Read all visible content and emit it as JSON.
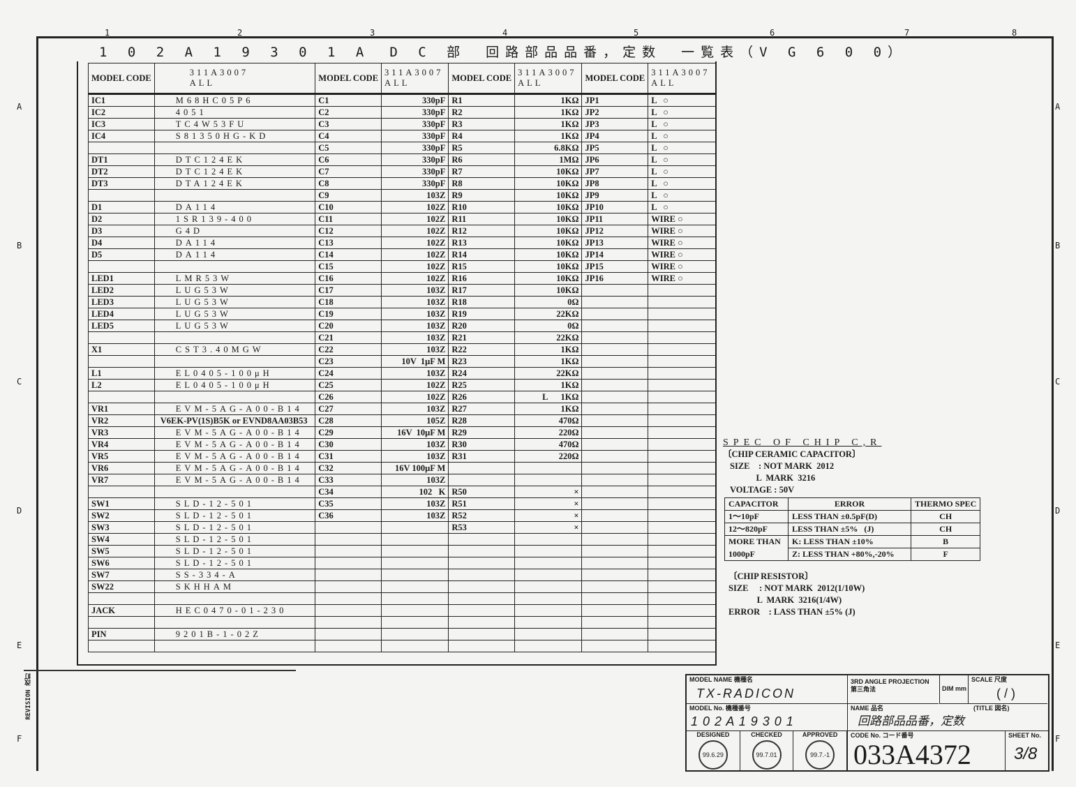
{
  "title": "1 0 2 A 1 9 3 0 1 A　D C 部　回路部品品番，定数　一覧表（V G 6 0 0）",
  "grid_cols": [
    "1",
    "2",
    "3",
    "4",
    "5",
    "6",
    "7",
    "8"
  ],
  "grid_rows": [
    "A",
    "B",
    "C",
    "D",
    "E",
    "F"
  ],
  "header": {
    "model_code": "MODEL CODE",
    "model": "311A3007",
    "all": "ALL"
  },
  "col1": [
    [
      "IC1",
      "M68HC05P6"
    ],
    [
      "IC2",
      "4051"
    ],
    [
      "IC3",
      "TC4W53FU"
    ],
    [
      "IC4",
      "S81350HG-KD"
    ],
    [
      "",
      ""
    ],
    [
      "DT1",
      "DTC124EK"
    ],
    [
      "DT2",
      "DTC124EK"
    ],
    [
      "DT3",
      "DTA124EK"
    ],
    [
      "",
      ""
    ],
    [
      "D1",
      "DA114"
    ],
    [
      "D2",
      "1SR139-400"
    ],
    [
      "D3",
      "G4D"
    ],
    [
      "D4",
      "DA114"
    ],
    [
      "D5",
      "DA114"
    ],
    [
      "",
      ""
    ],
    [
      "LED1",
      "LMR53W"
    ],
    [
      "LED2",
      "LUG53W"
    ],
    [
      "LED3",
      "LUG53W"
    ],
    [
      "LED4",
      "LUG53W"
    ],
    [
      "LED5",
      "LUG53W"
    ],
    [
      "",
      ""
    ],
    [
      "X1",
      "CST3.40MGW"
    ],
    [
      "",
      ""
    ],
    [
      "L1",
      "EL0405-100μH"
    ],
    [
      "L2",
      "EL0405-100μH"
    ],
    [
      "",
      ""
    ],
    [
      "VR1",
      "EVM-5AG-A00-B14"
    ],
    [
      "VR2",
      "V6EK-PV(1S)B5K or EVND8AA03B53"
    ],
    [
      "VR3",
      "EVM-5AG-A00-B14"
    ],
    [
      "VR4",
      "EVM-5AG-A00-B14"
    ],
    [
      "VR5",
      "EVM-5AG-A00-B14"
    ],
    [
      "VR6",
      "EVM-5AG-A00-B14"
    ],
    [
      "VR7",
      "EVM-5AG-A00-B14"
    ],
    [
      "",
      ""
    ],
    [
      "SW1",
      "SLD-12-501"
    ],
    [
      "SW2",
      "SLD-12-501"
    ],
    [
      "SW3",
      "SLD-12-501"
    ],
    [
      "SW4",
      "SLD-12-501"
    ],
    [
      "SW5",
      "SLD-12-501"
    ],
    [
      "SW6",
      "SLD-12-501"
    ],
    [
      "SW7",
      "SS-334-A"
    ],
    [
      "SW22",
      "SKHHAM"
    ],
    [
      "",
      ""
    ],
    [
      "JACK",
      "HEC0470-01-230"
    ],
    [
      "",
      ""
    ],
    [
      "PIN",
      "9201B-1-02Z"
    ],
    [
      "",
      ""
    ]
  ],
  "col2": [
    [
      "C1",
      "330pF"
    ],
    [
      "C2",
      "330pF"
    ],
    [
      "C3",
      "330pF"
    ],
    [
      "C4",
      "330pF"
    ],
    [
      "C5",
      "330pF"
    ],
    [
      "C6",
      "330pF"
    ],
    [
      "C7",
      "330pF"
    ],
    [
      "C8",
      "330pF"
    ],
    [
      "C9",
      "103Z"
    ],
    [
      "C10",
      "102Z"
    ],
    [
      "C11",
      "102Z"
    ],
    [
      "C12",
      "102Z"
    ],
    [
      "C13",
      "102Z"
    ],
    [
      "C14",
      "102Z"
    ],
    [
      "C15",
      "102Z"
    ],
    [
      "C16",
      "102Z"
    ],
    [
      "C17",
      "103Z"
    ],
    [
      "C18",
      "103Z"
    ],
    [
      "C19",
      "103Z"
    ],
    [
      "C20",
      "103Z"
    ],
    [
      "C21",
      "103Z"
    ],
    [
      "C22",
      "103Z"
    ],
    [
      "C23",
      "10V  1μF M"
    ],
    [
      "C24",
      "103Z"
    ],
    [
      "C25",
      "102Z"
    ],
    [
      "C26",
      "102Z"
    ],
    [
      "C27",
      "103Z"
    ],
    [
      "C28",
      "105Z"
    ],
    [
      "C29",
      "16V  10μF M"
    ],
    [
      "C30",
      "103Z"
    ],
    [
      "C31",
      "103Z"
    ],
    [
      "C32",
      "16V 100μF M"
    ],
    [
      "C33",
      "103Z"
    ],
    [
      "C34",
      "102   K"
    ],
    [
      "C35",
      "103Z"
    ],
    [
      "C36",
      "103Z"
    ]
  ],
  "col3": [
    [
      "R1",
      "1KΩ"
    ],
    [
      "R2",
      "1KΩ"
    ],
    [
      "R3",
      "1KΩ"
    ],
    [
      "R4",
      "1KΩ"
    ],
    [
      "R5",
      "6.8KΩ"
    ],
    [
      "R6",
      "1MΩ"
    ],
    [
      "R7",
      "10KΩ"
    ],
    [
      "R8",
      "10KΩ"
    ],
    [
      "R9",
      "10KΩ"
    ],
    [
      "R10",
      "10KΩ"
    ],
    [
      "R11",
      "10KΩ"
    ],
    [
      "R12",
      "10KΩ"
    ],
    [
      "R13",
      "10KΩ"
    ],
    [
      "R14",
      "10KΩ"
    ],
    [
      "R15",
      "10KΩ"
    ],
    [
      "R16",
      "10KΩ"
    ],
    [
      "R17",
      "10KΩ"
    ],
    [
      "R18",
      "0Ω"
    ],
    [
      "R19",
      "22KΩ"
    ],
    [
      "R20",
      "0Ω"
    ],
    [
      "R21",
      "22KΩ"
    ],
    [
      "R22",
      "1KΩ"
    ],
    [
      "R23",
      "1KΩ"
    ],
    [
      "R24",
      "22KΩ"
    ],
    [
      "R25",
      "1KΩ"
    ],
    [
      "R26",
      "L      1KΩ"
    ],
    [
      "R27",
      "1KΩ"
    ],
    [
      "R28",
      "470Ω"
    ],
    [
      "R29",
      "220Ω"
    ],
    [
      "R30",
      "470Ω"
    ],
    [
      "R31",
      "220Ω"
    ],
    [
      "",
      ""
    ],
    [
      "",
      ""
    ],
    [
      "R50",
      "×"
    ],
    [
      "R51",
      "×"
    ],
    [
      "R52",
      "×"
    ],
    [
      "R53",
      "×"
    ]
  ],
  "col4": [
    [
      "JP1",
      "L   ○"
    ],
    [
      "JP2",
      "L   ○"
    ],
    [
      "JP3",
      "L   ○"
    ],
    [
      "JP4",
      "L   ○"
    ],
    [
      "JP5",
      "L   ○"
    ],
    [
      "JP6",
      "L   ○"
    ],
    [
      "JP7",
      "L   ○"
    ],
    [
      "JP8",
      "L   ○"
    ],
    [
      "JP9",
      "L   ○"
    ],
    [
      "JP10",
      "L   ○"
    ],
    [
      "JP11",
      "WIRE ○"
    ],
    [
      "JP12",
      "WIRE ○"
    ],
    [
      "JP13",
      "WIRE ○"
    ],
    [
      "JP14",
      "WIRE ○"
    ],
    [
      "JP15",
      "WIRE ○"
    ],
    [
      "JP16",
      "WIRE ○"
    ]
  ],
  "spec": {
    "heading": "SPEC OF CHIP C,R",
    "cap_title": "〔CHIP CERAMIC CAPACITOR〕",
    "cap_size1": "SIZE    : NOT MARK  2012",
    "cap_size2": "            L  MARK  3216",
    "voltage": "VOLTAGE : 50V",
    "cap_table_header": [
      "CAPACITOR",
      "ERROR",
      "THERMO SPEC"
    ],
    "cap_rows": [
      [
        "1～10pF",
        "LESS THAN ±0.5pF(D)",
        "CH"
      ],
      [
        "12～820pF",
        "LESS THAN ±5%   (J)",
        "CH"
      ],
      [
        "MORE THAN",
        "K: LESS THAN ±10%",
        "B"
      ],
      [
        "1000pF",
        "Z: LESS THAN +80%,-20%",
        "F"
      ]
    ],
    "res_title": "〔CHIP RESISTOR〕",
    "res_size1": "SIZE     : NOT MARK  2012(1/10W)",
    "res_size2": "             L  MARK  3216(1/4W)",
    "res_error": "ERROR    : LASS THAN ±5% (J)"
  },
  "title_block": {
    "model_name_label": "MODEL NAME 機種名",
    "model_name": "TX-RADICON",
    "projection": "3RD ANGLE PROJECTION 第三角法",
    "dim": "DIM mm",
    "scale_label": "SCALE 尺度",
    "scale": "( / )",
    "model_no_label": "MODEL No. 機種番号",
    "model_no": "1 0 2 A 1 9 3 0 1",
    "name_label": "NAME 品名",
    "title_label": "(TITLE 図名)",
    "name": "回路部品品番，定数",
    "stamps": [
      {
        "label": "DESIGNED",
        "date": "99.6.29"
      },
      {
        "label": "CHECKED",
        "date": "99.7.01"
      },
      {
        "label": "APPROVED",
        "date": "99.7.-1"
      }
    ],
    "code_label": "CODE No. コード番号",
    "code": "033A4372",
    "sheet_label": "SHEET No.",
    "sheet": "3/8"
  },
  "revision_label": "REVISION 改訂"
}
